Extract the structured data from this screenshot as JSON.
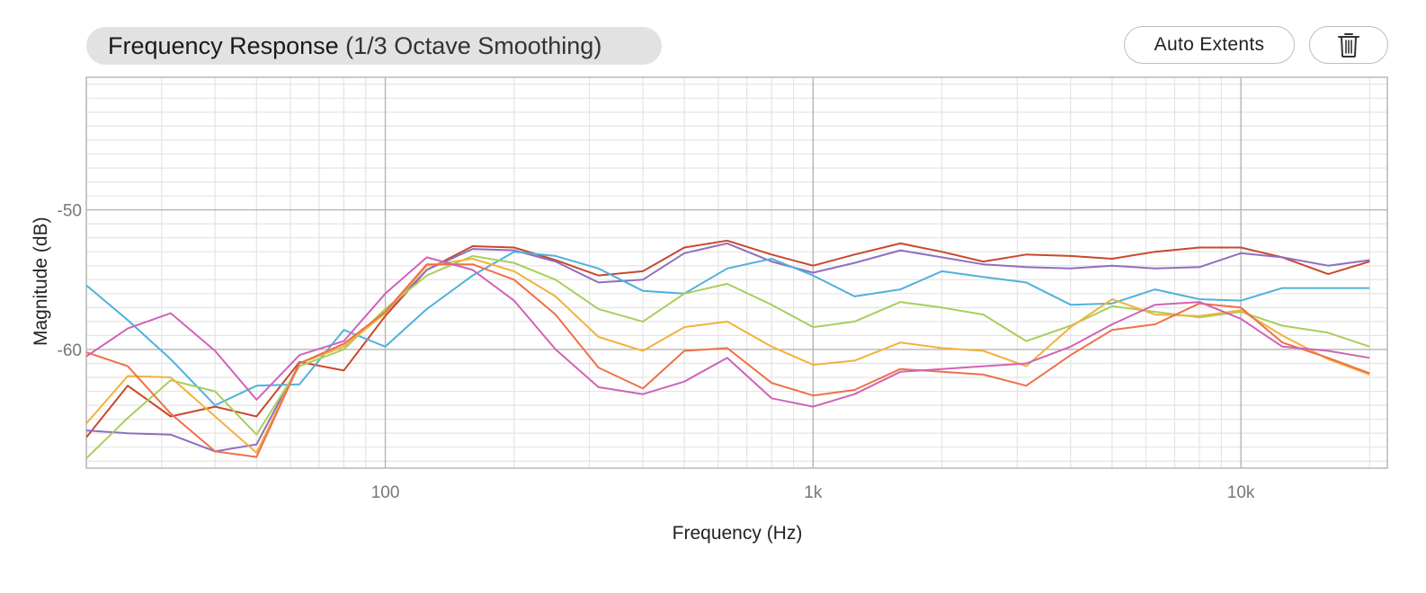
{
  "header": {
    "title_main": "Frequency Response",
    "title_sub": "(1/3 Octave Smoothing)",
    "auto_extents_label": "Auto Extents",
    "delete_icon": "trash-icon"
  },
  "chart_data": {
    "type": "line",
    "title": "Frequency Response (1/3 Octave Smoothing)",
    "xlabel": "Frequency (Hz)",
    "ylabel": "Magnitude (dB)",
    "xscale": "log",
    "xlim": [
      20,
      22000
    ],
    "ylim": [
      -68.5,
      -40.5
    ],
    "grid": true,
    "x_ticks": [
      {
        "value": 100,
        "label": "100"
      },
      {
        "value": 1000,
        "label": "1k"
      },
      {
        "value": 10000,
        "label": "10k"
      }
    ],
    "y_ticks": [
      {
        "value": -50,
        "label": "-50"
      },
      {
        "value": -60,
        "label": "-60"
      }
    ],
    "x": [
      20,
      25,
      31.5,
      40,
      50,
      63,
      80,
      100,
      125,
      160,
      200,
      250,
      315,
      400,
      500,
      630,
      800,
      1000,
      1250,
      1600,
      2000,
      2500,
      3150,
      4000,
      5000,
      6300,
      8000,
      10000,
      12500,
      16000,
      20000
    ],
    "series": [
      {
        "color": "#c9482c",
        "values": [
          -66.3,
          -62.6,
          -64.8,
          -64.1,
          -64.8,
          -60.9,
          -61.5,
          -57.6,
          -54.3,
          -52.6,
          -52.7,
          -53.6,
          -54.7,
          -54.4,
          -52.7,
          -52.2,
          -53.2,
          -54.0,
          -53.2,
          -52.4,
          -53.0,
          -53.7,
          -53.2,
          -53.3,
          -53.5,
          -53.0,
          -52.7,
          -52.7,
          -53.4,
          -54.6,
          -53.7
        ]
      },
      {
        "color": "#8e6fc0",
        "values": [
          -65.8,
          -66.0,
          -66.1,
          -67.3,
          -66.8,
          -61.0,
          -59.6,
          -57.4,
          -54.3,
          -52.8,
          -52.9,
          -53.7,
          -55.2,
          -55.0,
          -53.1,
          -52.4,
          -53.7,
          -54.5,
          -53.8,
          -52.9,
          -53.4,
          -53.9,
          -54.1,
          -54.2,
          -54.0,
          -54.2,
          -54.1,
          -53.1,
          -53.4,
          -54.0,
          -53.6
        ]
      },
      {
        "color": "#4fb1de",
        "values": [
          -55.4,
          -57.9,
          -60.7,
          -64.0,
          -62.6,
          -62.5,
          -58.6,
          -59.8,
          -57.1,
          -54.7,
          -53.0,
          -53.3,
          -54.2,
          -55.8,
          -56.0,
          -54.2,
          -53.5,
          -54.7,
          -56.2,
          -55.7,
          -54.4,
          -54.8,
          -55.2,
          -56.8,
          -56.7,
          -55.7,
          -56.4,
          -56.5,
          -55.6,
          -55.6,
          -55.6
        ]
      },
      {
        "color": "#a8cf5a",
        "values": [
          -67.8,
          -64.9,
          -62.2,
          -63.0,
          -66.1,
          -61.2,
          -60.0,
          -57.1,
          -54.7,
          -53.3,
          -53.8,
          -55.0,
          -57.1,
          -58.0,
          -56.0,
          -55.3,
          -56.8,
          -58.4,
          -58.0,
          -56.6,
          -57.0,
          -57.5,
          -59.4,
          -58.3,
          -56.9,
          -57.3,
          -57.7,
          -57.3,
          -58.3,
          -58.8,
          -59.8
        ]
      },
      {
        "color": "#f2b23a",
        "values": [
          -65.3,
          -61.9,
          -62.0,
          -64.8,
          -67.4,
          -61.0,
          -59.8,
          -57.4,
          -54.0,
          -53.5,
          -54.4,
          -56.2,
          -59.1,
          -60.1,
          -58.4,
          -58.0,
          -59.8,
          -61.1,
          -60.8,
          -59.5,
          -59.9,
          -60.1,
          -61.2,
          -58.4,
          -56.4,
          -57.5,
          -57.6,
          -57.2,
          -59.0,
          -60.7,
          -61.8
        ]
      },
      {
        "color": "#f07048",
        "values": [
          -60.2,
          -61.2,
          -64.6,
          -67.3,
          -67.7,
          -61.0,
          -59.6,
          -57.3,
          -53.9,
          -53.9,
          -55.0,
          -57.5,
          -61.3,
          -62.8,
          -60.1,
          -59.9,
          -62.4,
          -63.3,
          -62.9,
          -61.4,
          -61.6,
          -61.8,
          -62.6,
          -60.4,
          -58.6,
          -58.2,
          -56.7,
          -57.0,
          -59.5,
          -60.6,
          -61.7
        ]
      },
      {
        "color": "#d063b6",
        "values": [
          -60.5,
          -58.5,
          -57.4,
          -60.1,
          -63.6,
          -60.4,
          -59.4,
          -56.0,
          -53.4,
          -54.3,
          -56.5,
          -60.0,
          -62.7,
          -63.2,
          -62.3,
          -60.6,
          -63.5,
          -64.1,
          -63.2,
          -61.6,
          -61.4,
          -61.2,
          -61.0,
          -59.8,
          -58.2,
          -56.8,
          -56.6,
          -57.8,
          -59.8,
          -60.1,
          -60.6
        ]
      }
    ]
  }
}
